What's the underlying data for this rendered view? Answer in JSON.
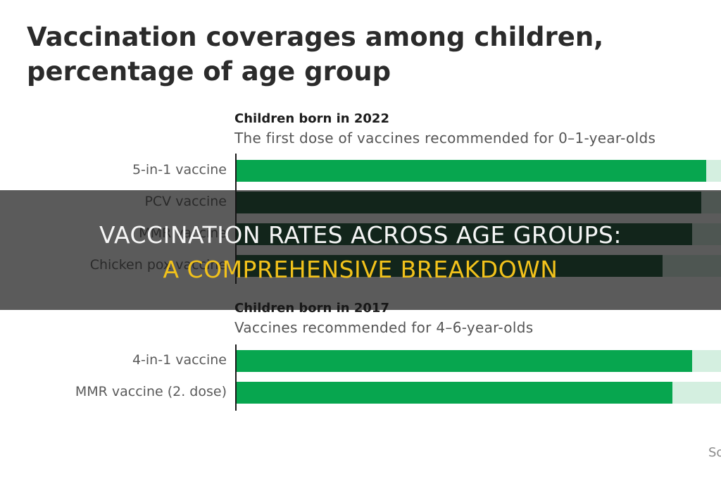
{
  "chart_data": {
    "type": "bar",
    "orientation": "horizontal",
    "title": [
      "Vaccination coverages among children,",
      "percentage of age group"
    ],
    "groups": [
      {
        "title": "Children born in 2022",
        "subtitle": "The first dose of vaccines recommended for 0–1-year-olds",
        "bars": [
          {
            "label": "5-in-1 vaccine",
            "value": 97,
            "color": "#07a64f"
          },
          {
            "label": "PCV vaccine",
            "value": 96,
            "color": "#0b4b2a"
          },
          {
            "label": "MMR vaccine",
            "value": 94,
            "color": "#0b4b2a"
          },
          {
            "label": "Chicken pox vaccine",
            "value": 88,
            "color": "#0b4b2a"
          }
        ]
      },
      {
        "title": "Children born in 2017",
        "subtitle": "Vaccines recommended for 4–6-year-olds",
        "bars": [
          {
            "label": "4-in-1 vaccine",
            "value": 94,
            "color": "#07a64f"
          },
          {
            "label": "MMR vaccine (2. dose)",
            "value": 90,
            "color": "#07a64f"
          }
        ]
      }
    ],
    "xlim": [
      0,
      100
    ],
    "source_text": "So"
  },
  "overlay": {
    "line1": "Vaccination rates across age groups:",
    "line2": "a comprehensive breakdown",
    "line1_color": "#f5f5f5",
    "line2_color": "#f2c21b"
  }
}
